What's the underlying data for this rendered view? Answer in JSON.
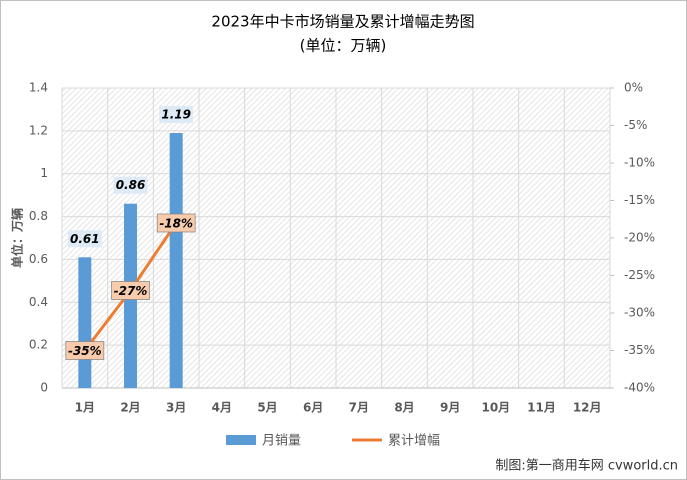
{
  "chart_data": {
    "type": "bar",
    "title": "2023年中卡市场销量及累计增幅走势图",
    "subtitle": "(单位：万辆)",
    "y_label": "单位：万辆",
    "credit": "制图:第一商用车网 cvworld.cn",
    "categories": [
      "1月",
      "2月",
      "3月",
      "4月",
      "5月",
      "6月",
      "7月",
      "8月",
      "9月",
      "10月",
      "11月",
      "12月"
    ],
    "series": [
      {
        "name": "月销量",
        "color": "#5b9bd5",
        "values": [
          0.61,
          0.86,
          1.19,
          null,
          null,
          null,
          null,
          null,
          null,
          null,
          null,
          null
        ]
      },
      {
        "name": "累计增幅",
        "color": "#ed7d31",
        "axis": "y2",
        "type": "line",
        "values": [
          -35,
          -27,
          -18,
          null,
          null,
          null,
          null,
          null,
          null,
          null,
          null,
          null
        ],
        "value_labels": [
          "-35%",
          "-27%",
          "-18%",
          null,
          null,
          null,
          null,
          null,
          null,
          null,
          null,
          null
        ]
      }
    ],
    "ylim": [
      0,
      1.4
    ],
    "yticks": [
      0,
      0.2,
      0.4,
      0.6,
      0.8,
      1,
      1.2,
      1.4
    ],
    "y2lim": [
      -40,
      0
    ],
    "y2ticks": [
      {
        "value": 0,
        "label": "0%"
      },
      {
        "value": -5,
        "label": "-5%"
      },
      {
        "value": -10,
        "label": "-10%"
      },
      {
        "value": -15,
        "label": "-15%"
      },
      {
        "value": -20,
        "label": "-20%"
      },
      {
        "value": -25,
        "label": "-25%"
      },
      {
        "value": -30,
        "label": "-30%"
      },
      {
        "value": -35,
        "label": "-35%"
      },
      {
        "value": -40,
        "label": "-40%"
      }
    ],
    "grid": true
  }
}
